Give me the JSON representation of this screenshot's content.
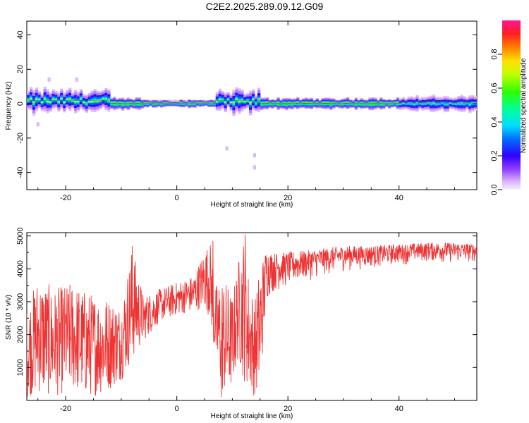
{
  "title": "C2E2.2025.289.09.12.G09",
  "chart_data": [
    {
      "type": "heatmap",
      "title": "C2E2.2025.289.09.12.G09",
      "xlabel": "Height of straight line (km)",
      "ylabel": "Frequency (Hz)",
      "xlim": [
        -27,
        54
      ],
      "ylim": [
        -50,
        48
      ],
      "xticks": [
        -20,
        0,
        20,
        40
      ],
      "yticks": [
        -40,
        -20,
        0,
        20,
        40
      ],
      "colorbar": {
        "label": "Normalized spectral amplitude",
        "range": [
          0,
          1
        ],
        "ticks": [
          0.0,
          0.2,
          0.4,
          0.6,
          0.8
        ],
        "colormap": [
          "#f5f0ff",
          "#c8a0ff",
          "#6000ff",
          "#0000ff",
          "#00c8ff",
          "#00ff80",
          "#40ff00",
          "#ffff00",
          "#ff8000",
          "#ff0040",
          "#ff1493"
        ]
      },
      "segments": [
        {
          "x": [
            -27,
            -12
          ],
          "center_hz": 1.5,
          "spread_hz": 6,
          "peak": 0.7
        },
        {
          "x": [
            -12,
            -6
          ],
          "center_hz": 0,
          "spread_hz": 3,
          "peak": 0.95
        },
        {
          "x": [
            -6,
            7
          ],
          "center_hz": 0,
          "spread_hz": 2,
          "peak": 1.0
        },
        {
          "x": [
            7,
            15
          ],
          "center_hz": 1,
          "spread_hz": 6,
          "peak": 0.7
        },
        {
          "x": [
            15,
            40
          ],
          "center_hz": 0,
          "spread_hz": 3,
          "peak": 0.95
        },
        {
          "x": [
            40,
            54
          ],
          "center_hz": 0,
          "spread_hz": 4,
          "peak": 0.6
        }
      ],
      "outliers": [
        {
          "x": 9,
          "y": -26
        },
        {
          "x": 14,
          "y": -30
        },
        {
          "x": 14,
          "y": -37
        },
        {
          "x": -23,
          "y": 14
        },
        {
          "x": -18,
          "y": 14
        },
        {
          "x": -25,
          "y": -12
        }
      ]
    },
    {
      "type": "line",
      "xlabel": "Height of straight line (km)",
      "ylabel": "SNR (10 * v/v)",
      "xlim": [
        -27,
        54
      ],
      "ylim": [
        0,
        5100
      ],
      "xticks": [
        -20,
        0,
        20,
        40
      ],
      "yticks": [
        1000,
        2000,
        3000,
        4000,
        5000
      ],
      "color": "#ee3333",
      "envelope": {
        "x": [
          -27,
          -25,
          -22,
          -19,
          -16,
          -13,
          -10,
          -8,
          -6,
          -3,
          0,
          3,
          5,
          6,
          7,
          8,
          9,
          10,
          11,
          12,
          13,
          14,
          15,
          16,
          17,
          20,
          25,
          30,
          35,
          40,
          45,
          50,
          54
        ],
        "low": [
          100,
          200,
          100,
          300,
          100,
          200,
          600,
          1200,
          1800,
          2400,
          2600,
          2700,
          2800,
          2500,
          1000,
          200,
          100,
          400,
          1200,
          600,
          300,
          100,
          300,
          2800,
          3200,
          3400,
          3700,
          3900,
          4000,
          4100,
          4200,
          4150,
          4200
        ],
        "high": [
          2800,
          3800,
          3400,
          3600,
          3300,
          3200,
          2900,
          4700,
          3200,
          3400,
          3600,
          3800,
          4600,
          4850,
          3500,
          3900,
          3600,
          3200,
          4200,
          5050,
          3800,
          3000,
          4200,
          4600,
          4500,
          4500,
          4600,
          4700,
          4700,
          4750,
          4800,
          4800,
          4750
        ]
      },
      "spikes": [
        {
          "x": -8,
          "y": 4700
        },
        {
          "x": 6.5,
          "y": 4850
        },
        {
          "x": 12.3,
          "y": 5050
        },
        {
          "x": 8,
          "y": 100
        },
        {
          "x": 14,
          "y": 200
        }
      ]
    }
  ]
}
